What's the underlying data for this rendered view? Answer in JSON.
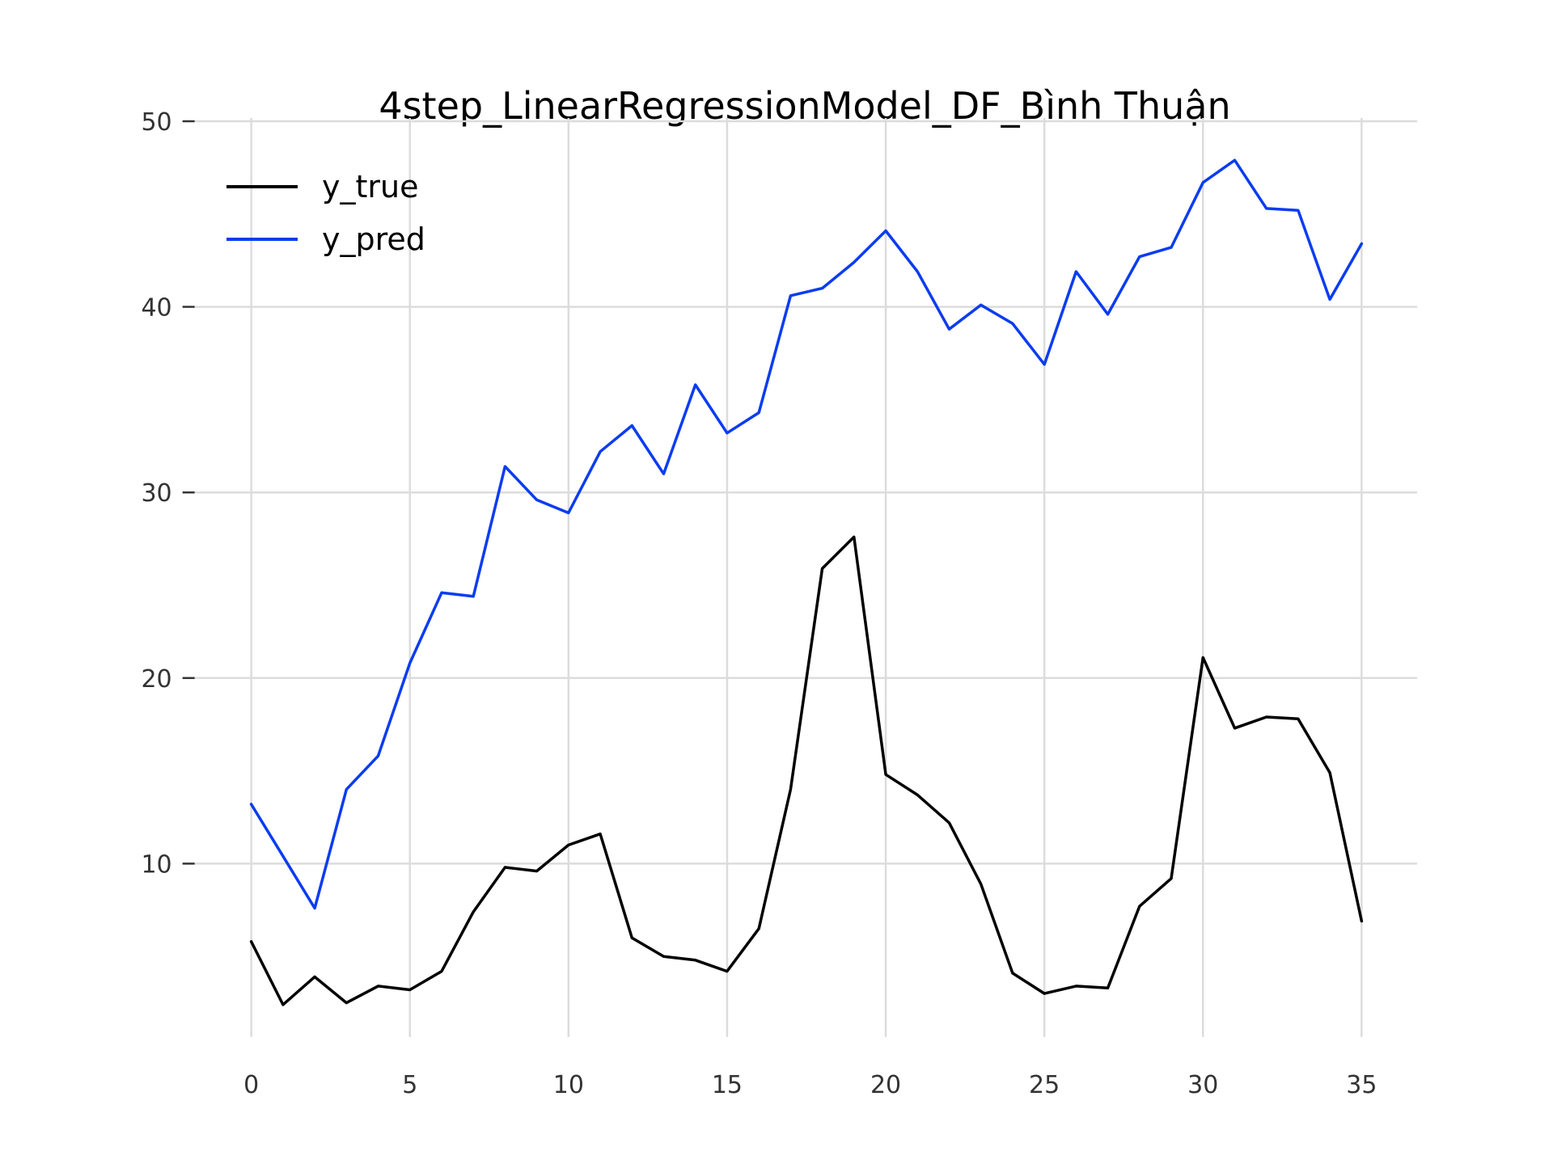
{
  "chart_data": {
    "type": "line",
    "title": "4step_LinearRegressionModel_DF_Bình Thuận",
    "xlabel": "",
    "ylabel": "",
    "xlim": [
      -1.75,
      36.75
    ],
    "ylim": [
      0,
      50
    ],
    "xticks": [
      0,
      5,
      10,
      15,
      20,
      25,
      30,
      35
    ],
    "yticks": [
      10,
      20,
      30,
      40,
      50
    ],
    "grid": true,
    "legend_position": "top-left",
    "x": [
      0,
      1,
      2,
      3,
      4,
      5,
      6,
      7,
      8,
      9,
      10,
      11,
      12,
      13,
      14,
      15,
      16,
      17,
      18,
      19,
      20,
      21,
      22,
      23,
      24,
      25,
      26,
      27,
      28,
      29,
      30,
      31,
      32,
      33,
      34,
      35
    ],
    "series": [
      {
        "name": "y_true",
        "color": "#000000",
        "values": [
          5.8,
          2.4,
          3.9,
          2.5,
          3.4,
          3.2,
          4.2,
          7.4,
          9.8,
          9.6,
          11.0,
          11.6,
          6.0,
          5.0,
          4.8,
          4.2,
          6.5,
          14.0,
          25.9,
          27.6,
          14.8,
          13.7,
          12.2,
          8.9,
          4.1,
          3.0,
          3.4,
          3.3,
          7.7,
          9.2,
          21.1,
          17.3,
          17.9,
          17.8,
          14.9,
          6.9
        ]
      },
      {
        "name": "y_pred",
        "color": "#0a3cf0",
        "values": [
          13.2,
          10.4,
          7.6,
          14.0,
          15.8,
          20.8,
          24.6,
          24.4,
          31.4,
          29.6,
          28.9,
          32.2,
          33.6,
          31.0,
          35.8,
          33.2,
          34.3,
          40.6,
          41.0,
          42.4,
          44.1,
          41.9,
          38.8,
          40.1,
          39.1,
          36.9,
          41.9,
          39.6,
          42.7,
          43.2,
          46.7,
          47.9,
          45.3,
          45.2,
          40.4,
          43.4
        ]
      }
    ]
  }
}
